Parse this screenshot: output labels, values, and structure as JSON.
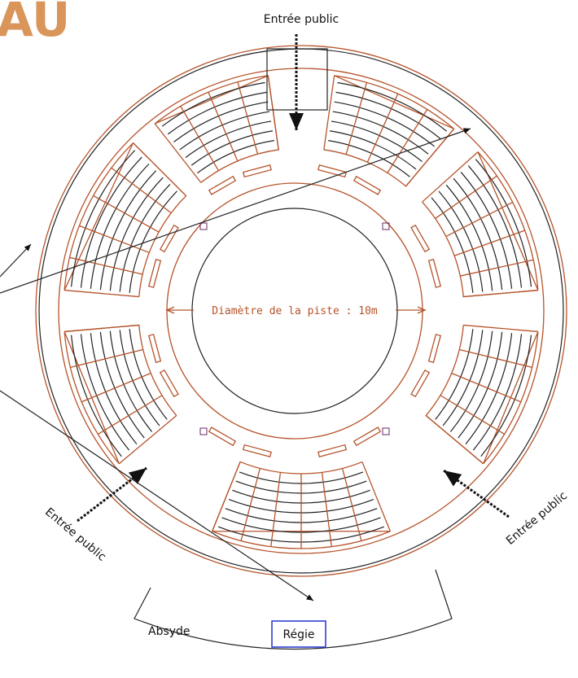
{
  "header": {
    "title_fragment": "AU"
  },
  "labels": {
    "entry_top": "Entrée public",
    "entry_left": "Entrée public",
    "entry_right": "Entrée public",
    "ring_diameter": "Diamètre de la piste : 10m",
    "apse": "Absyde",
    "control_booth": "Régie"
  }
}
